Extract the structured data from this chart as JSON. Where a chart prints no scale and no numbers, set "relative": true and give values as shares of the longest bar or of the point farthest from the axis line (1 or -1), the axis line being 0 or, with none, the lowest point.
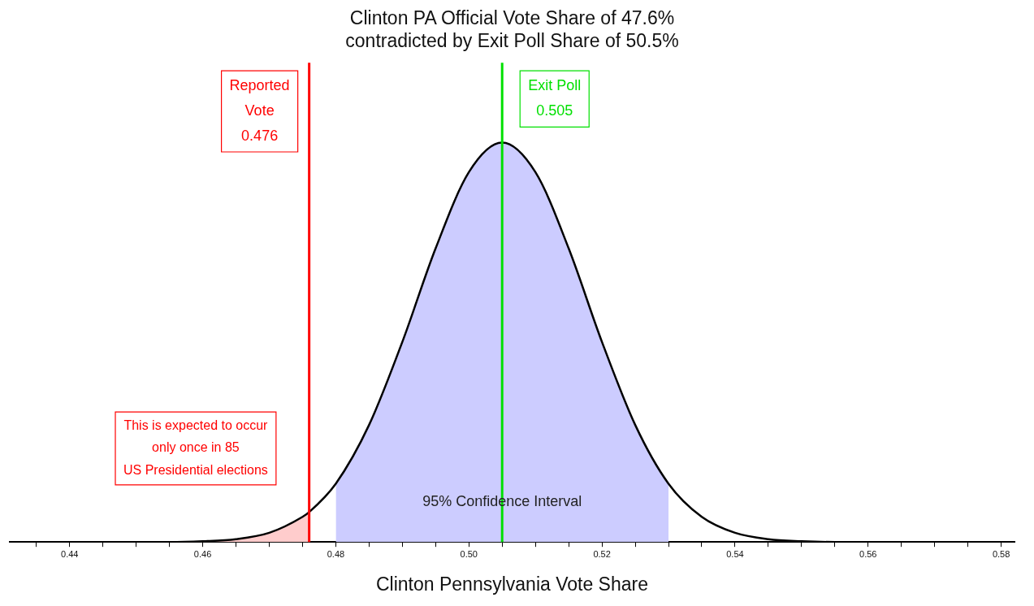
{
  "chart_data": {
    "type": "line",
    "title": "Clinton PA Official Vote Share of 47.6%\ncontradicted by Exit Poll Share of 50.5%",
    "xlabel": "Clinton Pennsylvania Vote Share",
    "relative": true,
    "legend": false,
    "grid": false,
    "marker": "none",
    "x": [
      0.431,
      0.44,
      0.45,
      0.455,
      0.46,
      0.465,
      0.47,
      0.475,
      0.476,
      0.48,
      0.485,
      0.49,
      0.495,
      0.5,
      0.505,
      0.51,
      0.515,
      0.52,
      0.525,
      0.53,
      0.535,
      0.54,
      0.545,
      0.55,
      0.555,
      0.56,
      0.57,
      0.582
    ],
    "series": [
      {
        "type": "line",
        "color": "#000000",
        "values": [
          0,
          0,
          0,
          0,
          0.002,
          0.007,
          0.023,
          0.063,
          0.075,
          0.146,
          0.293,
          0.501,
          0.735,
          0.926,
          1,
          0.926,
          0.735,
          0.501,
          0.293,
          0.146,
          0.063,
          0.023,
          0.007,
          0.002,
          0,
          0,
          0,
          0
        ]
      },
      {
        "type": "area",
        "color": "#ccccff",
        "x": [
          0.48,
          0.485,
          0.49,
          0.495,
          0.5,
          0.505,
          0.51,
          0.515,
          0.52,
          0.525,
          0.53
        ],
        "values": [
          0.146,
          0.293,
          0.501,
          0.735,
          0.926,
          1,
          0.926,
          0.735,
          0.501,
          0.293,
          0.146
        ]
      },
      {
        "type": "area",
        "color": "#ffcccc",
        "x": [
          0.431,
          0.44,
          0.45,
          0.455,
          0.46,
          0.465,
          0.47,
          0.475,
          0.476
        ],
        "values": [
          0,
          0,
          0,
          0,
          0.002,
          0.007,
          0.023,
          0.063,
          0.075
        ]
      }
    ],
    "xlim": [
      0.431,
      0.582
    ],
    "xticks": [
      {
        "value": 0.435,
        "label": null
      },
      {
        "value": 0.44,
        "label": "0.44"
      },
      {
        "value": 0.445,
        "label": null
      },
      {
        "value": 0.45,
        "label": null
      },
      {
        "value": 0.455,
        "label": null
      },
      {
        "value": 0.46,
        "label": "0.46"
      },
      {
        "value": 0.465,
        "label": null
      },
      {
        "value": 0.47,
        "label": null
      },
      {
        "value": 0.475,
        "label": null
      },
      {
        "value": 0.48,
        "label": "0.48"
      },
      {
        "value": 0.485,
        "label": null
      },
      {
        "value": 0.49,
        "label": null
      },
      {
        "value": 0.495,
        "label": null
      },
      {
        "value": 0.5,
        "label": "0.50"
      },
      {
        "value": 0.505,
        "label": null
      },
      {
        "value": 0.51,
        "label": null
      },
      {
        "value": 0.515,
        "label": null
      },
      {
        "value": 0.52,
        "label": "0.52"
      },
      {
        "value": 0.525,
        "label": null
      },
      {
        "value": 0.53,
        "label": null
      },
      {
        "value": 0.535,
        "label": null
      },
      {
        "value": 0.54,
        "label": "0.54"
      },
      {
        "value": 0.545,
        "label": null
      },
      {
        "value": 0.55,
        "label": null
      },
      {
        "value": 0.555,
        "label": null
      },
      {
        "value": 0.56,
        "label": "0.56"
      },
      {
        "value": 0.565,
        "label": null
      },
      {
        "value": 0.57,
        "label": null
      },
      {
        "value": 0.575,
        "label": null
      },
      {
        "value": 0.58,
        "label": "0.58"
      }
    ],
    "ref_lines": [
      {
        "axis": "x",
        "value": 0.476,
        "label": "Reported\nVote\n0.476",
        "color": "#ff0000"
      },
      {
        "axis": "x",
        "value": 0.505,
        "label": "Exit Poll\n0.505",
        "color": "#00e000"
      }
    ],
    "annotations": [
      {
        "text": "95% Confidence Interval",
        "x": 0.505,
        "y": 0.1
      },
      "This is expected to occur\nonly once in 85\nUS Presidential elections"
    ]
  }
}
